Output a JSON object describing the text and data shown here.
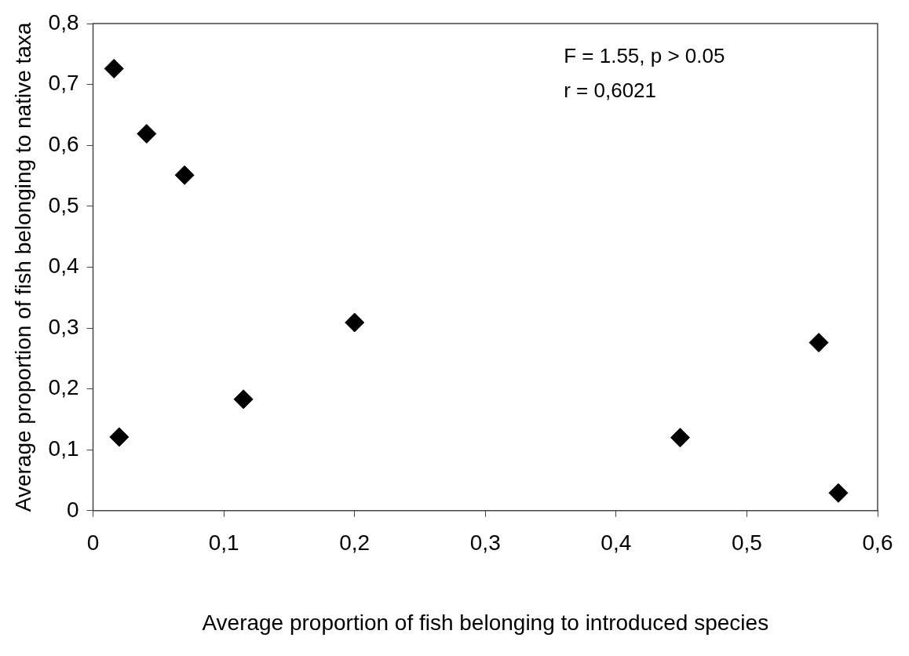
{
  "chart_data": {
    "type": "scatter",
    "xlabel": "Average proportion of fish belonging to introduced species",
    "ylabel": "Average proportion of fish belonging to native taxa",
    "x": [
      0.016,
      0.041,
      0.07,
      0.02,
      0.115,
      0.2,
      0.449,
      0.555,
      0.57
    ],
    "values": [
      0.726,
      0.619,
      0.551,
      0.121,
      0.183,
      0.309,
      0.12,
      0.276,
      0.029
    ],
    "color": "#000000",
    "marker": "diamond",
    "grid": false,
    "xlim": [
      0,
      0.6
    ],
    "xticks": [
      0,
      {
        "value": 0.1,
        "label": "0,1"
      },
      {
        "value": 0.2,
        "label": "0,2"
      },
      {
        "value": 0.3,
        "label": "0,3"
      },
      {
        "value": 0.4,
        "label": "0,4"
      },
      {
        "value": 0.5,
        "label": "0,5"
      },
      {
        "value": 0.6,
        "label": "0,6"
      }
    ],
    "ylim": [
      0,
      0.8
    ],
    "yticks": [
      0,
      {
        "value": 0.1,
        "label": "0,1"
      },
      {
        "value": 0.2,
        "label": "0,2"
      },
      {
        "value": 0.3,
        "label": "0,3"
      },
      {
        "value": 0.4,
        "label": "0,4"
      },
      {
        "value": 0.5,
        "label": "0,5"
      },
      {
        "value": 0.6,
        "label": "0,6"
      },
      {
        "value": 0.7,
        "label": "0,7"
      },
      {
        "value": 0.8,
        "label": "0,8"
      }
    ],
    "annotations": [
      "F = 1.55, p > 0.05",
      "r = 0,6021"
    ]
  }
}
